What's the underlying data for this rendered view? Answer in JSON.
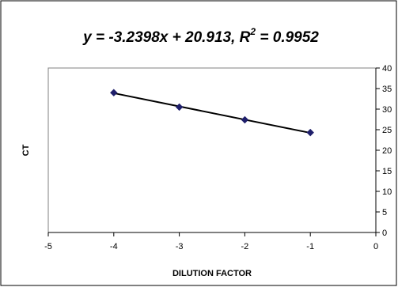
{
  "chart_data": {
    "type": "scatter",
    "title": {
      "main": "y = -3.2398x + 20.913, R",
      "superscript": "2",
      "suffix": " = 0.9952"
    },
    "xlabel": "DILUTION FACTOR",
    "ylabel": "CT",
    "xlim": [
      -5,
      0
    ],
    "ylim": [
      0,
      40
    ],
    "x_ticks": [
      "-5",
      "-4",
      "-3",
      "-2",
      "-1",
      "0"
    ],
    "x_tick_values": [
      -5,
      -4,
      -3,
      -2,
      -1,
      0
    ],
    "y_ticks": [
      "0",
      "5",
      "10",
      "15",
      "20",
      "25",
      "30",
      "35",
      "40"
    ],
    "y_tick_values": [
      0,
      5,
      10,
      15,
      20,
      25,
      30,
      35,
      40
    ],
    "y_axis_side": "right",
    "grid": false,
    "legend": "none",
    "series": [
      {
        "x": [
          -4,
          -3,
          -2,
          -1
        ],
        "y": [
          34.0,
          30.5,
          27.4,
          24.3
        ],
        "marker": "diamond",
        "color": "#1f1f6b"
      }
    ],
    "trendline": {
      "slope": -3.2398,
      "intercept": 20.913,
      "x_range": [
        -4,
        -1
      ],
      "color": "#000000"
    }
  }
}
